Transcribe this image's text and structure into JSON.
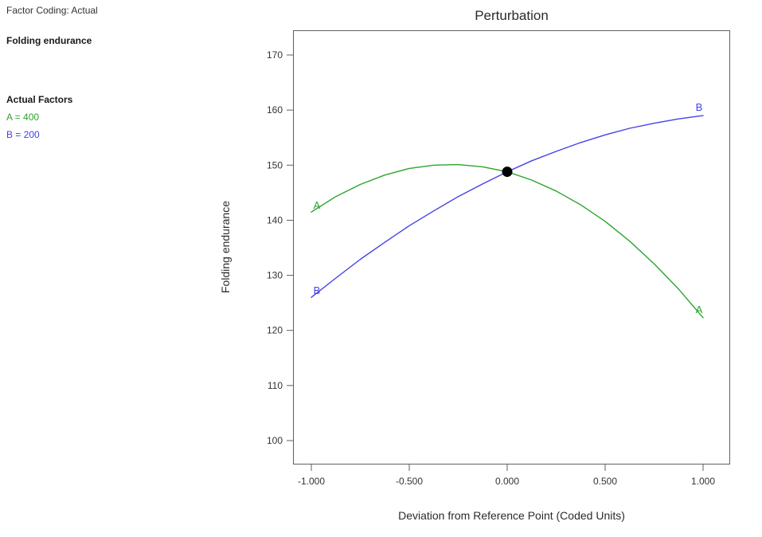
{
  "window": {
    "background": "#ffffff"
  },
  "sidebar": {
    "factor_coding": "Factor Coding: Actual",
    "response_label": "Folding endurance",
    "actual_factors_heading": "Actual Factors",
    "factors": [
      {
        "name": "A",
        "label": "A = 400",
        "color": "#2ea42e"
      },
      {
        "name": "B",
        "label": "B = 200",
        "color": "#4343e8"
      }
    ]
  },
  "chart_data": {
    "type": "line",
    "title": "Perturbation",
    "xlabel": "Deviation from Reference Point (Coded Units)",
    "ylabel": "Folding endurance",
    "grid": false,
    "legend_position": "none",
    "x_ticks": [
      -1.0,
      -0.5,
      0.0,
      0.5,
      1.0
    ],
    "x_tick_labels": [
      "-1.000",
      "-0.500",
      "0.000",
      "0.500",
      "1.000"
    ],
    "y_ticks": [
      100,
      110,
      120,
      130,
      140,
      150,
      160,
      170
    ],
    "y_tick_labels": [
      "100",
      "110",
      "120",
      "130",
      "140",
      "150",
      "160",
      "170"
    ],
    "xlim": [
      -1.09,
      1.14
    ],
    "ylim": [
      95.6,
      174.5
    ],
    "series": [
      {
        "name": "A",
        "label": "A",
        "color": "#2ea42e",
        "points": [
          [
            -1,
            141.5
          ],
          [
            -0.875,
            144.3
          ],
          [
            -0.75,
            146.5
          ],
          [
            -0.625,
            148.2
          ],
          [
            -0.5,
            149.4
          ],
          [
            -0.375,
            150.0
          ],
          [
            -0.25,
            150.1
          ],
          [
            -0.125,
            149.7
          ],
          [
            0,
            148.8
          ],
          [
            0.125,
            147.3
          ],
          [
            0.25,
            145.3
          ],
          [
            0.375,
            142.8
          ],
          [
            0.5,
            139.8
          ],
          [
            0.625,
            136.2
          ],
          [
            0.75,
            132.1
          ],
          [
            0.875,
            127.5
          ],
          [
            1,
            122.3
          ]
        ]
      },
      {
        "name": "B",
        "label": "B",
        "color": "#4343e8",
        "points": [
          [
            -1,
            126.0
          ],
          [
            -0.875,
            129.5
          ],
          [
            -0.75,
            132.9
          ],
          [
            -0.625,
            136.0
          ],
          [
            -0.5,
            139.0
          ],
          [
            -0.375,
            141.7
          ],
          [
            -0.25,
            144.3
          ],
          [
            -0.125,
            146.6
          ],
          [
            0,
            148.8
          ],
          [
            0.125,
            150.8
          ],
          [
            0.25,
            152.5
          ],
          [
            0.375,
            154.1
          ],
          [
            0.5,
            155.5
          ],
          [
            0.625,
            156.7
          ],
          [
            0.75,
            157.6
          ],
          [
            0.875,
            158.4
          ],
          [
            1,
            159.0
          ]
        ]
      }
    ],
    "reference_point": {
      "x": 0.0,
      "y": 148.8,
      "color": "#000000"
    }
  }
}
